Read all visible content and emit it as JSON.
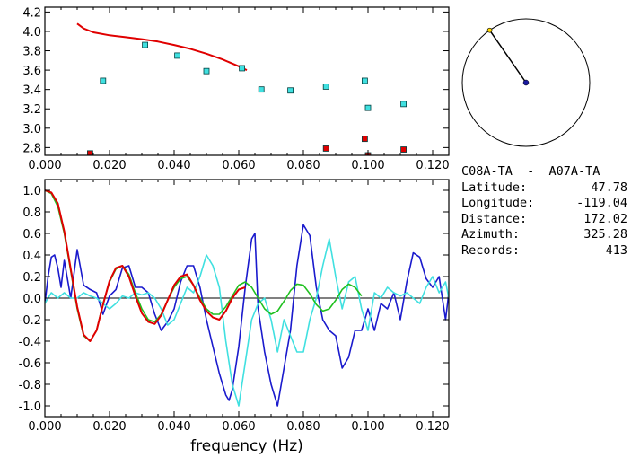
{
  "station_info": {
    "title": "C08A-TA  -  A07A-TA",
    "rows": [
      {
        "label": "Latitude:",
        "value": "47.78"
      },
      {
        "label": "Longitude:",
        "value": "-119.04"
      },
      {
        "label": "Distance:",
        "value": "172.02"
      },
      {
        "label": "Azimuth:",
        "value": "325.28"
      },
      {
        "label": "Records:",
        "value": "413"
      }
    ]
  },
  "azimuth_plot": {
    "azimuth_deg": 325.28,
    "colors": {
      "circle": "#000000",
      "line": "#000000",
      "center": "#1a1aa0",
      "end": "#ffd700"
    }
  },
  "chart_data": [
    {
      "type": "scatter",
      "title": "",
      "xlabel": "",
      "ylabel": "",
      "xlim": [
        0.0,
        0.125
      ],
      "ylim": [
        2.72,
        4.25
      ],
      "xticks": [
        "0.000",
        "0.020",
        "0.040",
        "0.060",
        "0.080",
        "0.100",
        "0.120"
      ],
      "xtick_values": [
        0.0,
        0.02,
        0.04,
        0.06,
        0.08,
        0.1,
        0.12
      ],
      "yticks": [
        "2.8",
        "3.0",
        "3.2",
        "3.4",
        "3.6",
        "3.8",
        "4.0",
        "4.2"
      ],
      "ytick_values": [
        2.8,
        3.0,
        3.2,
        3.4,
        3.6,
        3.8,
        4.0,
        4.2
      ],
      "series": [
        {
          "kind": "line",
          "color": "#e00000",
          "x": [
            0.01,
            0.012,
            0.015,
            0.02,
            0.025,
            0.03,
            0.035,
            0.04,
            0.045,
            0.05,
            0.055,
            0.06,
            0.0625
          ],
          "y": [
            4.08,
            4.03,
            3.99,
            3.96,
            3.94,
            3.92,
            3.895,
            3.86,
            3.82,
            3.77,
            3.71,
            3.64,
            3.6
          ]
        },
        {
          "kind": "markers",
          "color": "#40e0e0",
          "x": [
            0.018,
            0.031,
            0.041,
            0.05,
            0.061,
            0.067,
            0.076,
            0.087,
            0.099,
            0.1,
            0.111
          ],
          "y": [
            3.49,
            3.86,
            3.75,
            3.59,
            3.62,
            3.4,
            3.39,
            3.43,
            3.49,
            3.21,
            3.25
          ]
        },
        {
          "kind": "markers",
          "color": "#e00000",
          "x": [
            0.014,
            0.087,
            0.099,
            0.1,
            0.111
          ],
          "y": [
            2.74,
            2.79,
            2.89,
            2.72,
            2.78
          ]
        }
      ]
    },
    {
      "type": "line",
      "title": "",
      "xlabel": "frequency (Hz)",
      "ylabel": "",
      "xlim": [
        0.0,
        0.125
      ],
      "ylim": [
        -1.1,
        1.1
      ],
      "xticks": [
        "0.000",
        "0.020",
        "0.040",
        "0.060",
        "0.080",
        "0.100",
        "0.120"
      ],
      "xtick_values": [
        0.0,
        0.02,
        0.04,
        0.06,
        0.08,
        0.1,
        0.12
      ],
      "yticks": [
        "-1.0",
        "-0.8",
        "-0.6",
        "-0.4",
        "-0.2",
        "0.0",
        "0.2",
        "0.4",
        "0.6",
        "0.8",
        "1.0"
      ],
      "ytick_values": [
        -1.0,
        -0.8,
        -0.6,
        -0.4,
        -0.2,
        0.0,
        0.2,
        0.4,
        0.6,
        0.8,
        1.0
      ],
      "zero_line": true,
      "series": [
        {
          "color": "#1a1acd",
          "x": [
            0.0,
            0.001,
            0.002,
            0.003,
            0.004,
            0.005,
            0.006,
            0.008,
            0.01,
            0.012,
            0.014,
            0.016,
            0.018,
            0.02,
            0.022,
            0.024,
            0.026,
            0.028,
            0.03,
            0.032,
            0.034,
            0.036,
            0.038,
            0.04,
            0.042,
            0.044,
            0.046,
            0.048,
            0.05,
            0.052,
            0.054,
            0.056,
            0.057,
            0.058,
            0.06,
            0.062,
            0.064,
            0.065,
            0.066,
            0.068,
            0.07,
            0.072,
            0.074,
            0.076,
            0.078,
            0.08,
            0.082,
            0.084,
            0.086,
            0.088,
            0.09,
            0.092,
            0.094,
            0.096,
            0.098,
            0.1,
            0.102,
            0.104,
            0.106,
            0.108,
            0.11,
            0.112,
            0.114,
            0.116,
            0.118,
            0.12,
            0.122,
            0.124,
            0.125
          ],
          "y": [
            -0.05,
            0.2,
            0.38,
            0.4,
            0.28,
            0.1,
            0.35,
            0.0,
            0.45,
            0.12,
            0.08,
            0.05,
            -0.15,
            0.02,
            0.08,
            0.28,
            0.3,
            0.1,
            0.1,
            0.05,
            -0.15,
            -0.3,
            -0.22,
            -0.1,
            0.15,
            0.3,
            0.3,
            0.1,
            -0.2,
            -0.45,
            -0.7,
            -0.9,
            -0.95,
            -0.85,
            -0.45,
            0.1,
            0.55,
            0.6,
            -0.1,
            -0.5,
            -0.8,
            -1.0,
            -0.65,
            -0.3,
            0.3,
            0.68,
            0.58,
            0.1,
            -0.2,
            -0.3,
            -0.35,
            -0.65,
            -0.55,
            -0.3,
            -0.3,
            -0.1,
            -0.3,
            -0.05,
            -0.1,
            0.05,
            -0.2,
            0.15,
            0.42,
            0.38,
            0.18,
            0.1,
            0.2,
            -0.2,
            0.05
          ]
        },
        {
          "color": "#40e0e0",
          "x": [
            0.0,
            0.002,
            0.004,
            0.006,
            0.008,
            0.01,
            0.012,
            0.014,
            0.016,
            0.018,
            0.02,
            0.022,
            0.024,
            0.026,
            0.028,
            0.03,
            0.032,
            0.034,
            0.036,
            0.038,
            0.04,
            0.042,
            0.044,
            0.046,
            0.048,
            0.05,
            0.052,
            0.054,
            0.056,
            0.058,
            0.06,
            0.062,
            0.064,
            0.066,
            0.068,
            0.07,
            0.072,
            0.074,
            0.076,
            0.078,
            0.08,
            0.082,
            0.084,
            0.086,
            0.088,
            0.09,
            0.092,
            0.094,
            0.096,
            0.098,
            0.1,
            0.102,
            0.104,
            0.106,
            0.108,
            0.11,
            0.112,
            0.114,
            0.116,
            0.118,
            0.12,
            0.122,
            0.124,
            0.125
          ],
          "y": [
            -0.05,
            0.05,
            0.0,
            0.05,
            0.0,
            0.0,
            0.05,
            0.02,
            0.0,
            -0.05,
            -0.1,
            -0.05,
            0.02,
            0.0,
            0.05,
            0.03,
            0.05,
            0.0,
            -0.1,
            -0.25,
            -0.2,
            -0.05,
            0.1,
            0.05,
            0.2,
            0.4,
            0.3,
            0.1,
            -0.4,
            -0.8,
            -1.0,
            -0.6,
            -0.2,
            -0.05,
            0.0,
            -0.2,
            -0.5,
            -0.2,
            -0.35,
            -0.5,
            -0.5,
            -0.2,
            0.0,
            0.3,
            0.55,
            0.2,
            -0.1,
            0.15,
            0.2,
            -0.1,
            -0.3,
            0.05,
            0.0,
            0.1,
            0.05,
            0.02,
            0.05,
            0.0,
            -0.05,
            0.1,
            0.2,
            0.05,
            0.15,
            0.0
          ]
        },
        {
          "color": "#20c020",
          "x": [
            0.0,
            0.002,
            0.004,
            0.006,
            0.008,
            0.01,
            0.012,
            0.014,
            0.016,
            0.018,
            0.02,
            0.022,
            0.024,
            0.026,
            0.028,
            0.03,
            0.032,
            0.034,
            0.036,
            0.038,
            0.04,
            0.042,
            0.044,
            0.046,
            0.048,
            0.05,
            0.052,
            0.054,
            0.056,
            0.058,
            0.06,
            0.062,
            0.064,
            0.066,
            0.068,
            0.07,
            0.072,
            0.074,
            0.076,
            0.078,
            0.08,
            0.082,
            0.084,
            0.086,
            0.088,
            0.09,
            0.092,
            0.094,
            0.096,
            0.098
          ],
          "y": [
            1.0,
            0.97,
            0.85,
            0.6,
            0.25,
            -0.1,
            -0.35,
            -0.4,
            -0.3,
            -0.05,
            0.15,
            0.27,
            0.3,
            0.22,
            0.05,
            -0.1,
            -0.2,
            -0.22,
            -0.15,
            -0.02,
            0.1,
            0.18,
            0.2,
            0.12,
            0.0,
            -0.1,
            -0.15,
            -0.15,
            -0.08,
            0.02,
            0.12,
            0.15,
            0.1,
            0.0,
            -0.1,
            -0.15,
            -0.12,
            -0.03,
            0.07,
            0.13,
            0.12,
            0.04,
            -0.06,
            -0.12,
            -0.1,
            -0.02,
            0.08,
            0.13,
            0.1,
            0.02
          ]
        },
        {
          "color": "#e00000",
          "x": [
            0.0,
            0.002,
            0.004,
            0.006,
            0.008,
            0.01,
            0.012,
            0.014,
            0.016,
            0.018,
            0.02,
            0.022,
            0.024,
            0.026,
            0.028,
            0.03,
            0.032,
            0.034,
            0.036,
            0.038,
            0.04,
            0.042,
            0.044,
            0.046,
            0.048,
            0.05,
            0.052,
            0.054,
            0.056,
            0.058,
            0.06,
            0.062
          ],
          "y": [
            1.0,
            0.98,
            0.88,
            0.62,
            0.27,
            -0.08,
            -0.34,
            -0.4,
            -0.3,
            -0.06,
            0.16,
            0.28,
            0.3,
            0.2,
            0.02,
            -0.14,
            -0.22,
            -0.24,
            -0.16,
            -0.02,
            0.12,
            0.2,
            0.22,
            0.12,
            -0.02,
            -0.12,
            -0.18,
            -0.2,
            -0.12,
            0.0,
            0.08,
            0.1
          ]
        }
      ]
    }
  ]
}
